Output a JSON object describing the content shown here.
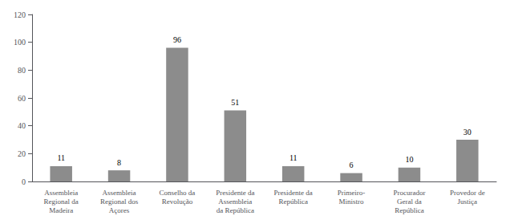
{
  "chart_data": {
    "type": "bar",
    "categories": [
      "Assembleia\nRegional da\nMadeira",
      "Assembleia\nRegional dos\nAçores",
      "Conselho da\nRevolução",
      "Presidente da\nAssembleia\nda República",
      "Presidente da\nRepública",
      "Primeiro-\nMinistro",
      "Procurador\nGeral da\nRepública",
      "Provedor de\nJustiça"
    ],
    "values": [
      11,
      8,
      96,
      51,
      11,
      6,
      10,
      30
    ],
    "color": "#8c8c8c",
    "ylim": [
      0,
      120
    ],
    "yticks": [
      0,
      20,
      40,
      60,
      80,
      100,
      120
    ],
    "data_labels": true,
    "grid": false
  }
}
